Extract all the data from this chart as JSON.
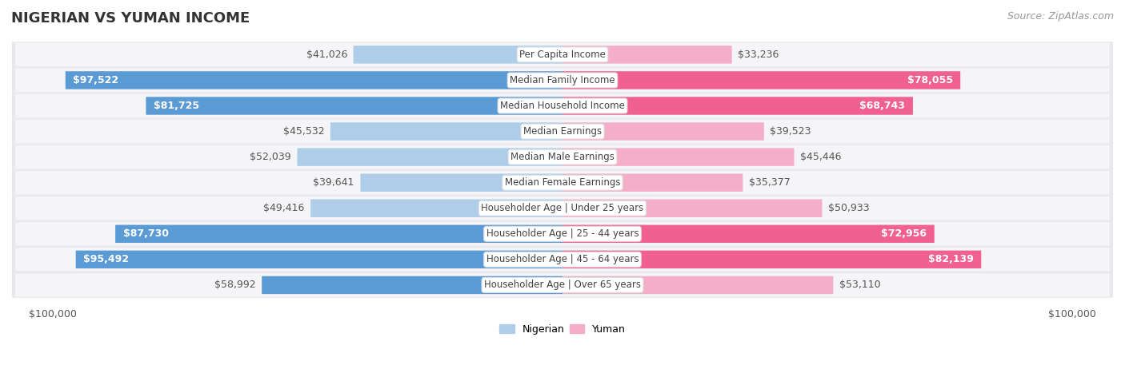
{
  "title": "NIGERIAN VS YUMAN INCOME",
  "source": "Source: ZipAtlas.com",
  "categories": [
    "Per Capita Income",
    "Median Family Income",
    "Median Household Income",
    "Median Earnings",
    "Median Male Earnings",
    "Median Female Earnings",
    "Householder Age | Under 25 years",
    "Householder Age | 25 - 44 years",
    "Householder Age | 45 - 64 years",
    "Householder Age | Over 65 years"
  ],
  "nigerian": [
    41026,
    97522,
    81725,
    45532,
    52039,
    39641,
    49416,
    87730,
    95492,
    58992
  ],
  "yuman": [
    33236,
    78055,
    68743,
    39523,
    45446,
    35377,
    50933,
    72956,
    82139,
    53110
  ],
  "max_val": 100000,
  "blue_light": "#aecde8",
  "blue_dark": "#5b9bd5",
  "pink_light": "#f4aec8",
  "pink_dark": "#f06090",
  "inside_label_threshold": 0.6,
  "title_fontsize": 13,
  "source_fontsize": 9,
  "bar_label_fontsize": 9,
  "category_fontsize": 8.5,
  "legend_fontsize": 9,
  "row_bg_color": "#e8e8ec",
  "row_inner_color": "#f5f5f7"
}
